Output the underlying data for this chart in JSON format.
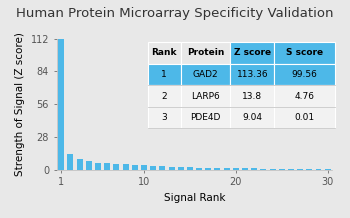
{
  "title": "Human Protein Microarray Specificity Validation",
  "xlabel": "Signal Rank",
  "ylabel": "Strength of Signal (Z score)",
  "xlim_min": 0.5,
  "xlim_max": 30.5,
  "ylim": [
    0,
    112
  ],
  "yticks": [
    0,
    28,
    56,
    84,
    112
  ],
  "xticks": [
    1,
    10,
    20,
    30
  ],
  "bar_color": "#4db8e8",
  "bar_values": [
    113.36,
    13.8,
    9.04,
    7.5,
    6.2,
    5.8,
    5.1,
    4.9,
    4.2,
    3.8,
    3.2,
    2.9,
    2.6,
    2.3,
    2.1,
    1.9,
    1.7,
    1.6,
    1.5,
    1.4,
    1.3,
    1.2,
    1.1,
    1.0,
    0.9,
    0.85,
    0.8,
    0.75,
    0.7,
    0.65
  ],
  "table_headers": [
    "Rank",
    "Protein",
    "Z score",
    "S score"
  ],
  "table_rows": [
    [
      "1",
      "GAD2",
      "113.36",
      "99.56"
    ],
    [
      "2",
      "LARP6",
      "13.8",
      "4.76"
    ],
    [
      "3",
      "PDE4D",
      "9.04",
      "0.01"
    ]
  ],
  "table_highlight_bg": "#4db8e8",
  "table_header_zscore_bg": "#4db8e8",
  "table_white_bg": "#f2f2f2",
  "table_row1_bg": "#4db8e8",
  "title_fontsize": 9.5,
  "axis_fontsize": 7.5,
  "tick_fontsize": 7,
  "table_fontsize": 6.5,
  "bg_color": "#e8e8e8"
}
